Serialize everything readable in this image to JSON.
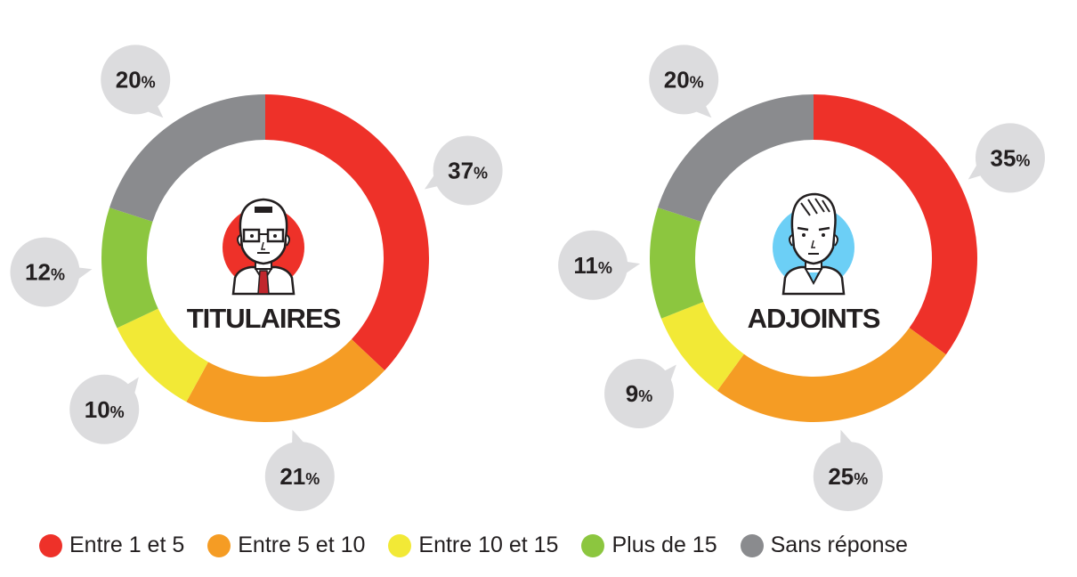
{
  "colors": {
    "entre_1_5": "#ee3129",
    "entre_5_10": "#f59c24",
    "entre_10_15": "#f2e936",
    "plus_15": "#8cc63f",
    "sans_reponse": "#8a8b8e",
    "bubble": "#dcdcde",
    "avatar_titulaires": "#ee3129",
    "avatar_adjoints": "#6ccff6"
  },
  "legend": [
    {
      "label": "Entre 1 et 5",
      "color": "#ee3129"
    },
    {
      "label": "Entre 5 et 10",
      "color": "#f59c24"
    },
    {
      "label": "Entre 10 et 15",
      "color": "#f2e936"
    },
    {
      "label": "Plus de 15",
      "color": "#8cc63f"
    },
    {
      "label": "Sans réponse",
      "color": "#8a8b8e"
    }
  ],
  "chart_data": [
    {
      "type": "pie",
      "title": "TITULAIRES",
      "icon": "man-with-glasses-icon",
      "categories": [
        "Entre 1 et 5",
        "Entre 5 et 10",
        "Entre 10 et 15",
        "Plus de 15",
        "Sans réponse"
      ],
      "values": [
        37,
        21,
        10,
        12,
        20
      ],
      "labels": [
        "37",
        "21",
        "10",
        "12",
        "20"
      ],
      "unit": "%"
    },
    {
      "type": "pie",
      "title": "ADJOINTS",
      "icon": "young-man-icon",
      "categories": [
        "Entre 1 et 5",
        "Entre 5 et 10",
        "Entre 10 et 15",
        "Plus de 15",
        "Sans réponse"
      ],
      "values": [
        35,
        25,
        9,
        11,
        20
      ],
      "labels": [
        "35",
        "25",
        "9",
        "11",
        "20"
      ],
      "unit": "%"
    }
  ]
}
